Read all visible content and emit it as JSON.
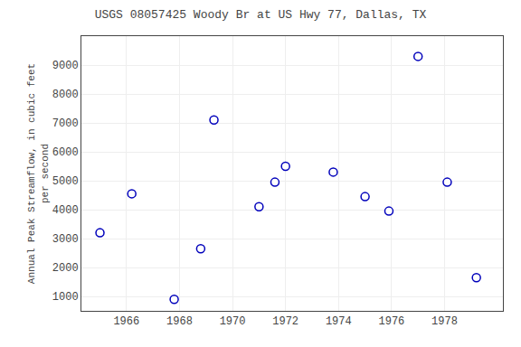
{
  "chart_data": {
    "type": "scatter",
    "title": "USGS 08057425 Woody Br at US Hwy 77, Dallas, TX",
    "ylabel": "Annual Peak Streamflow, in cubic feet\nper second",
    "x": [
      1965.0,
      1966.2,
      1967.8,
      1968.8,
      1969.3,
      1971.0,
      1971.6,
      1972.0,
      1973.8,
      1975.0,
      1975.9,
      1977.0,
      1978.1,
      1979.2
    ],
    "values": [
      3200,
      4550,
      900,
      2650,
      7100,
      4100,
      4950,
      5500,
      5300,
      4450,
      3950,
      9300,
      4950,
      1650
    ],
    "xlim": [
      1964.3,
      1980.2
    ],
    "ylim": [
      500,
      10000
    ],
    "xticks": [
      1966,
      1968,
      1970,
      1972,
      1974,
      1976,
      1978
    ],
    "yticks": [
      1000,
      2000,
      3000,
      4000,
      5000,
      6000,
      7000,
      8000,
      9000
    ],
    "color": "#0000bb",
    "marker": "circle",
    "grid": true
  }
}
